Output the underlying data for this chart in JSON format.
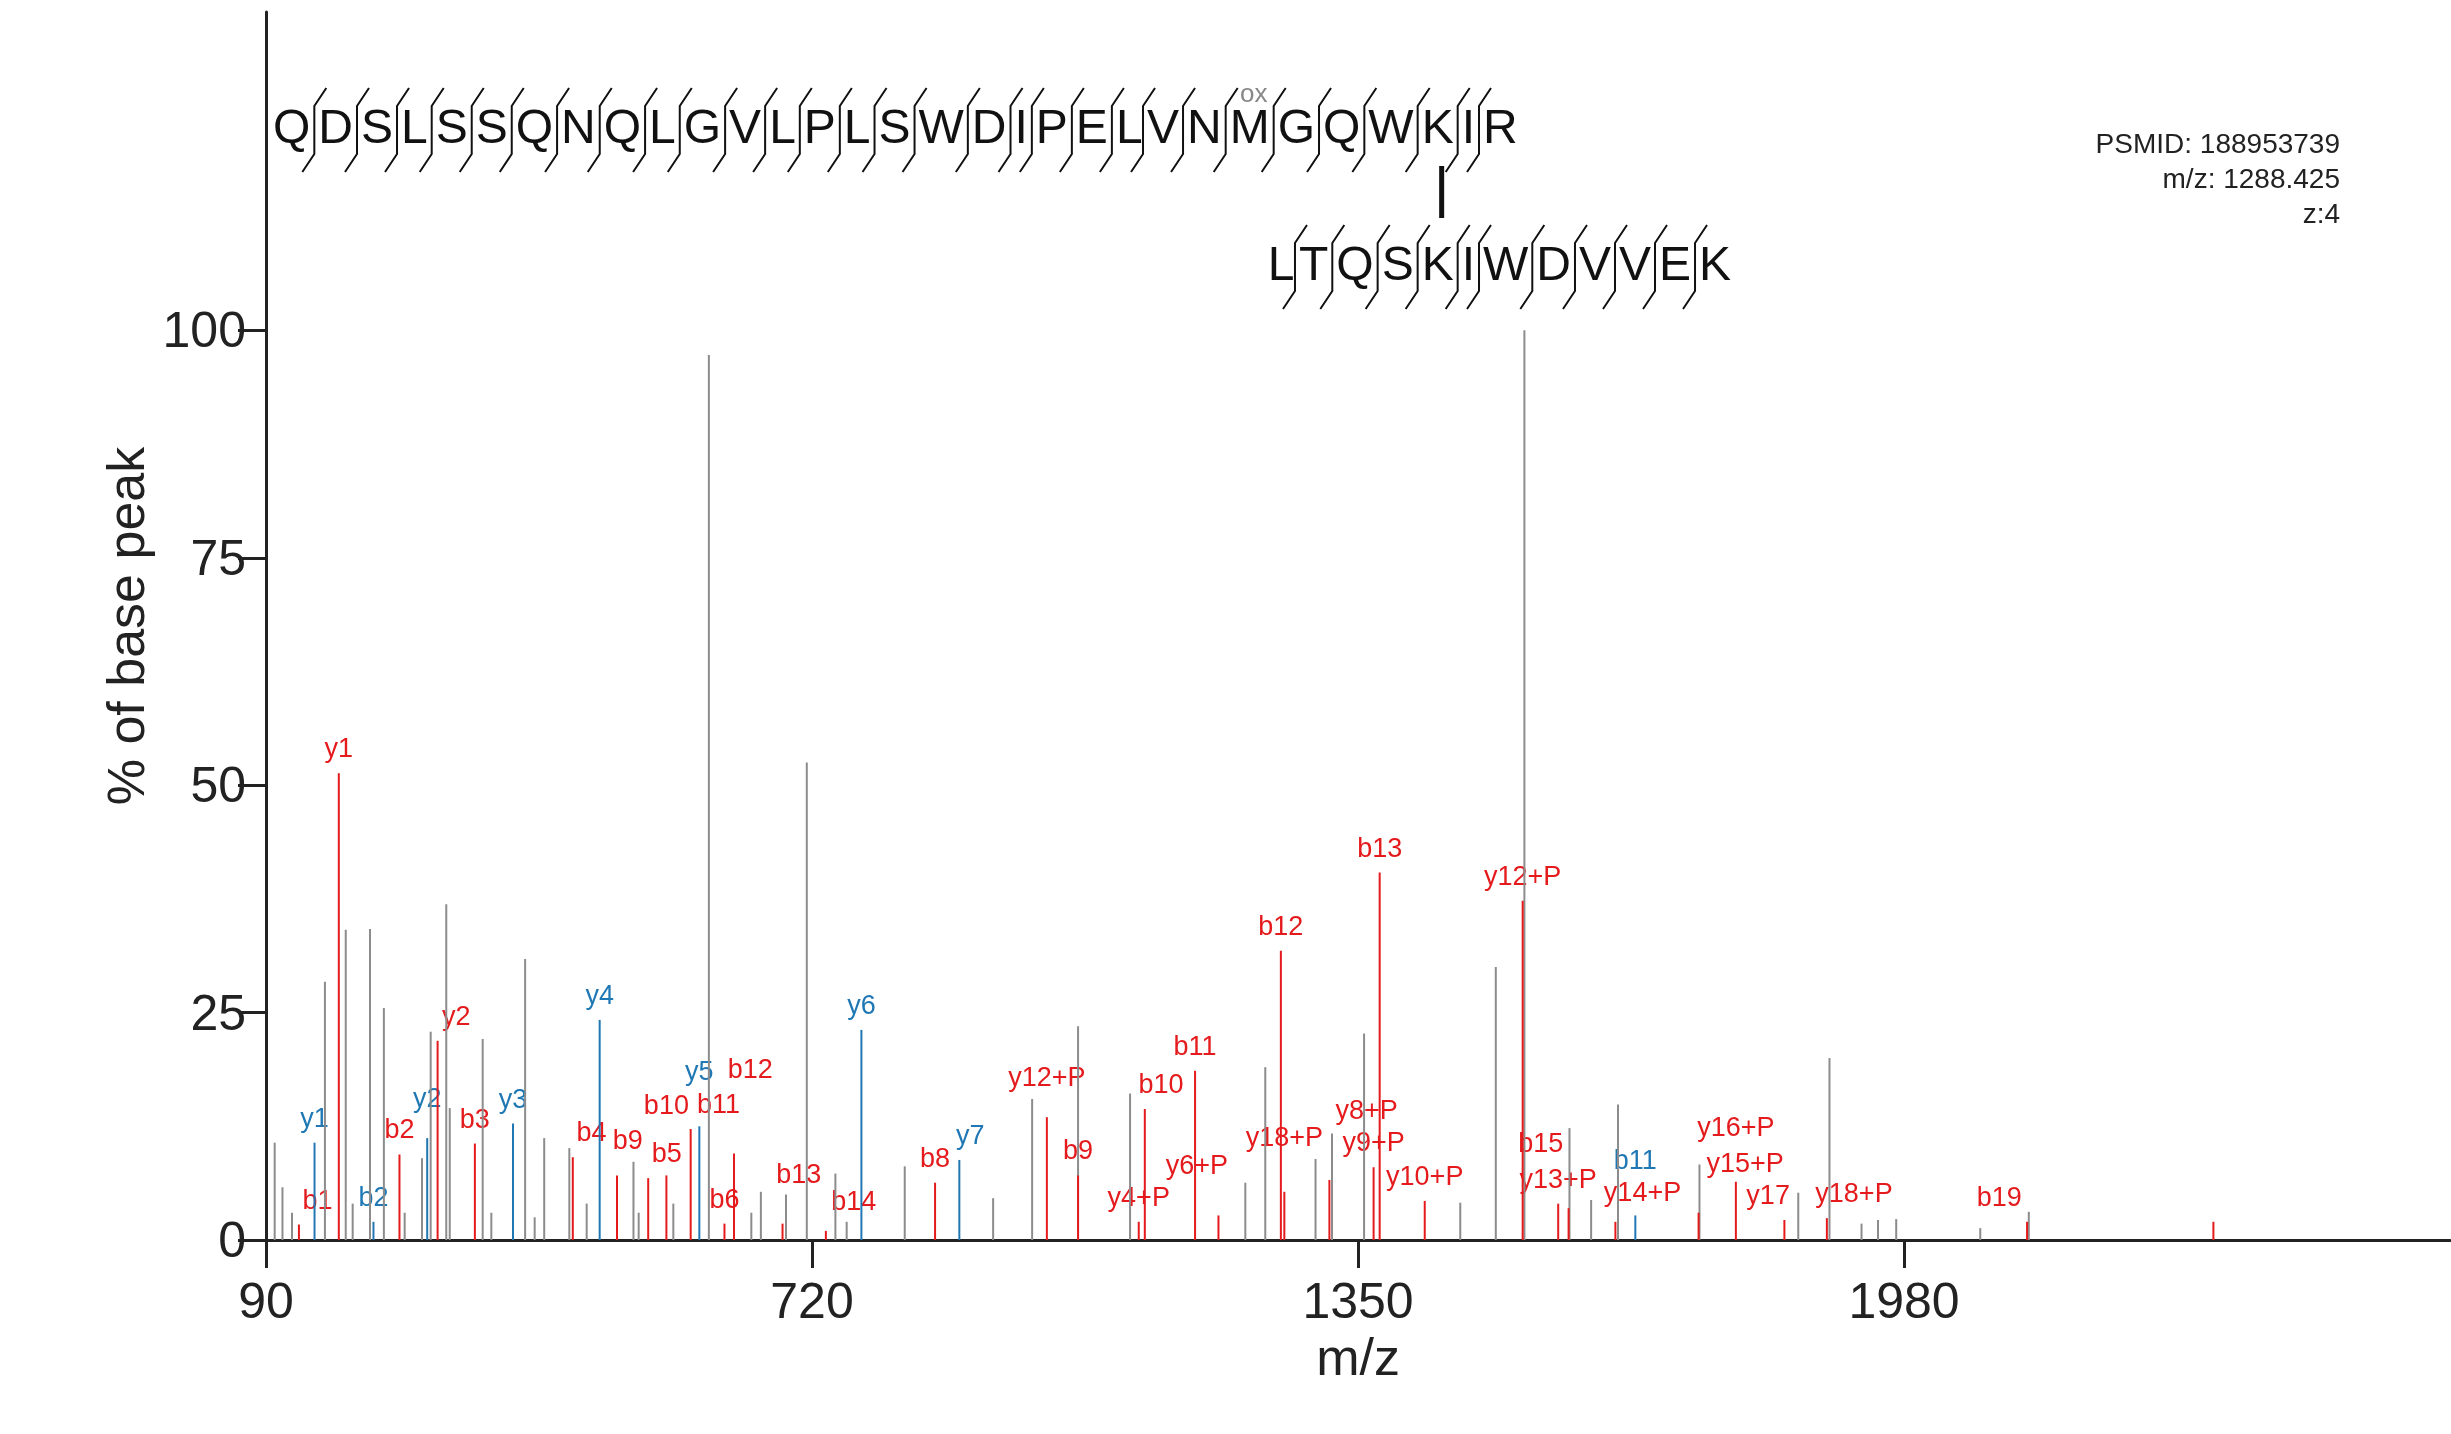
{
  "chart_data": {
    "type": "bar",
    "xlabel": "m/z",
    "ylabel": "% of base peak",
    "xlim": [
      90,
      2610
    ],
    "xticks": [
      90,
      720,
      1350,
      1980
    ],
    "ylim": [
      0,
      135
    ],
    "yticks": [
      0,
      25,
      50,
      75,
      100
    ],
    "grid": false,
    "series": [
      {
        "color": "#8c8c8c",
        "x": [
          100,
          109,
          120,
          158,
          182,
          190,
          210,
          226,
          250,
          270,
          280,
          298,
          302,
          340,
          350,
          389,
          400,
          411,
          440,
          460,
          514,
          520,
          560,
          601,
          650,
          661,
          690,
          714,
          747,
          760,
          827,
          929,
          974,
          1027,
          1087,
          1220,
          1243,
          1301,
          1320,
          1357,
          1468,
          1509,
          1542,
          1594,
          1619,
          1650,
          1744,
          1858,
          1894,
          1931,
          1950,
          1971,
          2068,
          2124
        ],
        "values": [
          10.7,
          5.8,
          3,
          28.4,
          34.1,
          4,
          34.2,
          25.5,
          3,
          9,
          22.9,
          36.9,
          14.5,
          22.1,
          3,
          30.9,
          2.5,
          11.2,
          10.1,
          4,
          8.6,
          3,
          4,
          97.3,
          3,
          5.3,
          5,
          52.5,
          7.3,
          2,
          8.1,
          4.6,
          15.5,
          23.5,
          16.1,
          6.3,
          19,
          8.9,
          11.7,
          22.7,
          4.1,
          30,
          100,
          12.3,
          4.4,
          14.9,
          8.3,
          5.2,
          20,
          1.8,
          2.2,
          2.3,
          1.3,
          3.1
        ]
      },
      {
        "color": "#e41a1c",
        "x": [
          128,
          174,
          244,
          288,
          331,
          444,
          495,
          531,
          552,
          580,
          619,
          630,
          686,
          736,
          862,
          991,
          1027,
          1097,
          1104,
          1162,
          1189,
          1261,
          1265,
          1317,
          1368,
          1375,
          1427,
          1540,
          1581,
          1593,
          1647,
          1743,
          1786,
          1842,
          1891,
          2122,
          2337
        ],
        "values": [
          1.7,
          51.3,
          9.4,
          21.9,
          10.6,
          9.1,
          7.1,
          6.8,
          7.1,
          12.2,
          1.8,
          9.5,
          1.8,
          1,
          6.3,
          13.5,
          7.1,
          2,
          14.4,
          18.6,
          2.7,
          31.8,
          5.3,
          6.6,
          8,
          40.4,
          4.3,
          37.3,
          4,
          3.5,
          2,
          3,
          6.4,
          2.2,
          2.4,
          2,
          2
        ]
      },
      {
        "color": "#1f78b4",
        "x": [
          146,
          214,
          276,
          375,
          475,
          590,
          777,
          890,
          1670
        ],
        "values": [
          10.7,
          2,
          11.2,
          12.8,
          24.2,
          12.5,
          23.1,
          8.8,
          2.7
        ]
      }
    ],
    "annotations": [
      "QDSLSSQNQLGVLPLSWDIPELVNMGQWKIR",
      "ox",
      "LTQSKIWDVVEK",
      "PSMID: 188953739",
      "m/z: 1288.425",
      "z:4",
      {
        "text": "b1",
        "x": 128,
        "y": 1.7
      },
      {
        "text": "y1",
        "x": 174,
        "y": 51.3
      },
      {
        "text": "y1",
        "x": 146,
        "y": 10.7
      },
      {
        "text": "b2",
        "x": 214,
        "y": 2
      },
      {
        "text": "b2",
        "x": 244,
        "y": 9.4
      },
      {
        "text": "y2",
        "x": 276,
        "y": 11.2
      },
      {
        "text": "y2",
        "x": 288,
        "y": 21.9
      },
      {
        "text": "b3",
        "x": 331,
        "y": 10.6
      },
      {
        "text": "y3",
        "x": 375,
        "y": 12.8
      },
      {
        "text": "b4",
        "x": 444,
        "y": 9.1
      },
      {
        "text": "y4",
        "x": 475,
        "y": 24.2
      },
      {
        "text": "b9",
        "x": 495,
        "y": 7.1
      },
      {
        "text": "b5",
        "x": 531,
        "y": 6.8
      },
      {
        "text": "b10",
        "x": 552,
        "y": 7.1
      },
      {
        "text": "b11",
        "x": 580,
        "y": 12.2
      },
      {
        "text": "y5",
        "x": 590,
        "y": 12.5
      },
      {
        "text": "b6",
        "x": 619,
        "y": 1.8
      },
      {
        "text": "b12",
        "x": 630,
        "y": 9.5
      },
      {
        "text": "b13",
        "x": 686,
        "y": 1.8
      },
      {
        "text": "b14",
        "x": 736,
        "y": 1
      },
      {
        "text": "y6",
        "x": 777,
        "y": 23.1
      },
      {
        "text": "b8",
        "x": 862,
        "y": 6.3
      },
      {
        "text": "y7",
        "x": 890,
        "y": 8.8
      },
      {
        "text": "y12+P",
        "x": 991,
        "y": 13.5
      },
      {
        "text": "b9",
        "x": 1027,
        "y": 7.1
      },
      {
        "text": "y4+P",
        "x": 1097,
        "y": 2
      },
      {
        "text": "b10",
        "x": 1104,
        "y": 14.4
      },
      {
        "text": "b11",
        "x": 1162,
        "y": 18.6
      },
      {
        "text": "y6+P",
        "x": 1189,
        "y": 2.7
      },
      {
        "text": "b12",
        "x": 1261,
        "y": 31.8
      },
      {
        "text": "y18+P",
        "x": 1265,
        "y": 5.3
      },
      {
        "text": "y8+P",
        "x": 1317,
        "y": 6.6
      },
      {
        "text": "y9+P",
        "x": 1368,
        "y": 8
      },
      {
        "text": "b13",
        "x": 1375,
        "y": 40.4
      },
      {
        "text": "y10+P",
        "x": 1427,
        "y": 4.3
      },
      {
        "text": "y12+P",
        "x": 1540,
        "y": 37.3
      },
      {
        "text": "y13+P",
        "x": 1581,
        "y": 4
      },
      {
        "text": "b15",
        "x": 1593,
        "y": 3.5
      },
      {
        "text": "y14+P",
        "x": 1647,
        "y": 2
      },
      {
        "text": "b11",
        "x": 1670,
        "y": 2.7
      },
      {
        "text": "y15+P",
        "x": 1743,
        "y": 3
      },
      {
        "text": "y16+P",
        "x": 1786,
        "y": 6.4
      },
      {
        "text": "y17",
        "x": 1842,
        "y": 2.2
      },
      {
        "text": "y18+P",
        "x": 1891,
        "y": 2.4
      },
      {
        "text": "b19",
        "x": 2122,
        "y": 2
      }
    ]
  }
}
